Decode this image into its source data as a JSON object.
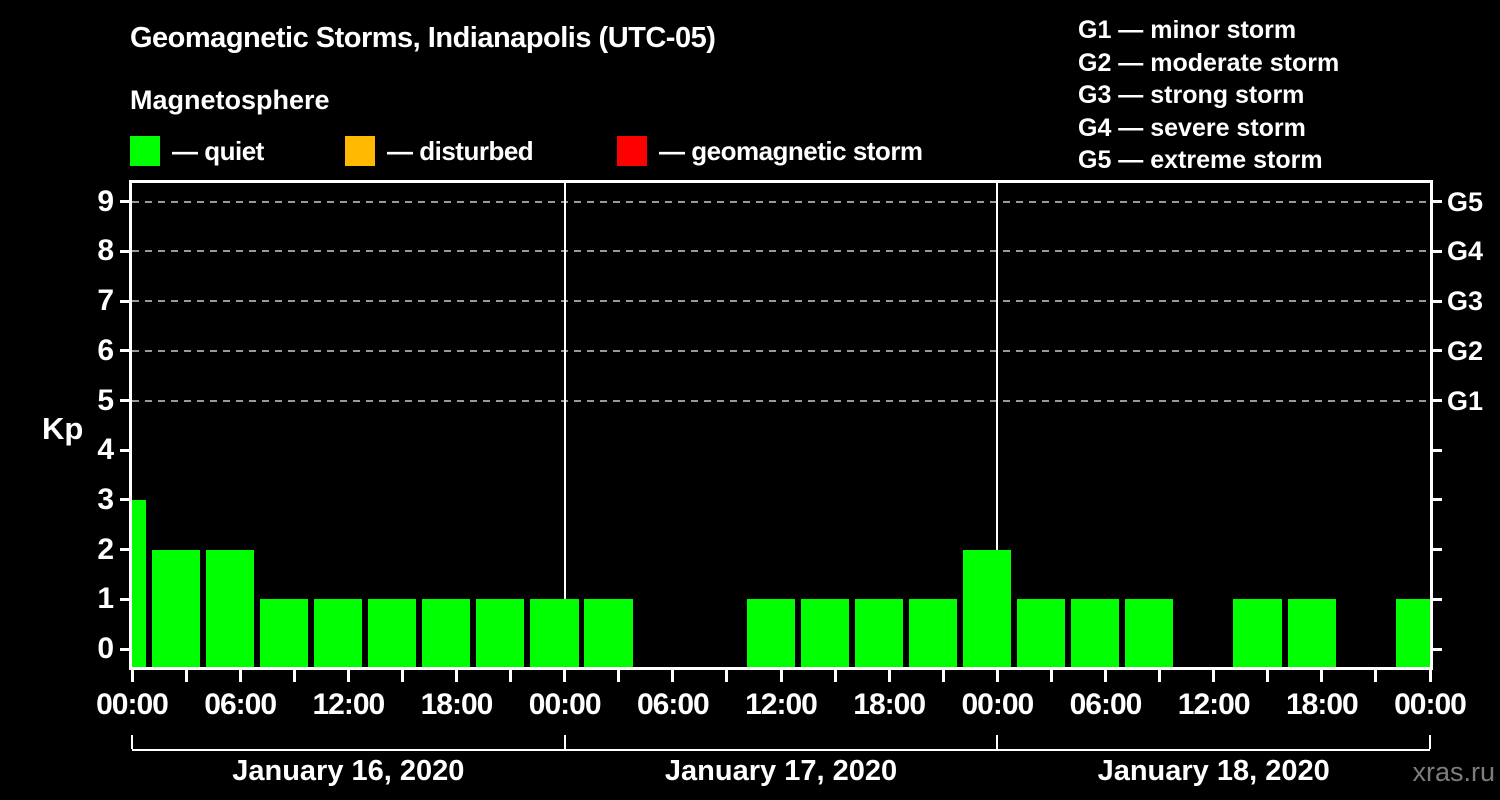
{
  "header": {
    "title": "Geomagnetic Storms, Indianapolis (UTC-05)",
    "subtitle": "Magnetosphere",
    "kp_legend": [
      {
        "label": "— quiet",
        "status": "quiet",
        "color": "#00ff00"
      },
      {
        "label": "— disturbed",
        "status": "disturbed",
        "color": "#ffb900"
      },
      {
        "label": "— geomagnetic storm",
        "status": "storm",
        "color": "#ff0000"
      }
    ],
    "g_scale_legend": [
      "G1 — minor storm",
      "G2 — moderate storm",
      "G3 — strong storm",
      "G4 — severe storm",
      "G5 — extreme storm"
    ]
  },
  "watermark": "xras.ru",
  "chart_data": {
    "type": "bar",
    "title": "Geomagnetic Storms, Indianapolis (UTC-05)",
    "subtitle": "Magnetosphere",
    "ylabel": "Kp",
    "y_ticks": [
      "0",
      "1",
      "2",
      "3",
      "4",
      "5",
      "6",
      "7",
      "8",
      "9"
    ],
    "ylim": [
      0,
      9
    ],
    "x_hours_span": 72,
    "bar_interval_hours": 3,
    "series_name": "Kp index, 3-hour intervals",
    "points": [
      {
        "start_hour": -3,
        "kp": 3,
        "status": "quiet"
      },
      {
        "start_hour": 0,
        "kp": 2,
        "status": "quiet"
      },
      {
        "start_hour": 3,
        "kp": 2,
        "status": "quiet"
      },
      {
        "start_hour": 6,
        "kp": 1,
        "status": "quiet"
      },
      {
        "start_hour": 9,
        "kp": 1,
        "status": "quiet"
      },
      {
        "start_hour": 12,
        "kp": 1,
        "status": "quiet"
      },
      {
        "start_hour": 15,
        "kp": 1,
        "status": "quiet"
      },
      {
        "start_hour": 18,
        "kp": 1,
        "status": "quiet"
      },
      {
        "start_hour": 21,
        "kp": 1,
        "status": "quiet"
      },
      {
        "start_hour": 24,
        "kp": 1,
        "status": "quiet"
      },
      {
        "start_hour": 27,
        "kp": 0,
        "status": "quiet"
      },
      {
        "start_hour": 30,
        "kp": 0,
        "status": "quiet"
      },
      {
        "start_hour": 33,
        "kp": 1,
        "status": "quiet"
      },
      {
        "start_hour": 36,
        "kp": 1,
        "status": "quiet"
      },
      {
        "start_hour": 39,
        "kp": 1,
        "status": "quiet"
      },
      {
        "start_hour": 42,
        "kp": 1,
        "status": "quiet"
      },
      {
        "start_hour": 45,
        "kp": 2,
        "status": "quiet"
      },
      {
        "start_hour": 48,
        "kp": 1,
        "status": "quiet"
      },
      {
        "start_hour": 51,
        "kp": 1,
        "status": "quiet"
      },
      {
        "start_hour": 54,
        "kp": 1,
        "status": "quiet"
      },
      {
        "start_hour": 57,
        "kp": 0,
        "status": "quiet"
      },
      {
        "start_hour": 60,
        "kp": 1,
        "status": "quiet"
      },
      {
        "start_hour": 63,
        "kp": 1,
        "status": "quiet"
      },
      {
        "start_hour": 66,
        "kp": 0,
        "status": "quiet"
      },
      {
        "start_hour": 69,
        "kp": 1,
        "status": "quiet"
      }
    ],
    "status_colors": {
      "quiet": "#00ff00",
      "disturbed": "#ffb900",
      "storm": "#ff0000"
    },
    "x_tick_labels": [
      {
        "hour": 0,
        "label": "00:00"
      },
      {
        "hour": 6,
        "label": "06:00"
      },
      {
        "hour": 12,
        "label": "12:00"
      },
      {
        "hour": 18,
        "label": "18:00"
      },
      {
        "hour": 24,
        "label": "00:00"
      },
      {
        "hour": 30,
        "label": "06:00"
      },
      {
        "hour": 36,
        "label": "12:00"
      },
      {
        "hour": 42,
        "label": "18:00"
      },
      {
        "hour": 48,
        "label": "00:00"
      },
      {
        "hour": 54,
        "label": "06:00"
      },
      {
        "hour": 60,
        "label": "12:00"
      },
      {
        "hour": 66,
        "label": "18:00"
      },
      {
        "hour": 72,
        "label": "00:00"
      }
    ],
    "day_labels": [
      {
        "label": "January 16, 2020",
        "start_hour": 0,
        "end_hour": 24
      },
      {
        "label": "January 17, 2020",
        "start_hour": 24,
        "end_hour": 48
      },
      {
        "label": "January 18, 2020",
        "start_hour": 48,
        "end_hour": 72
      }
    ],
    "day_boundaries_hours": [
      24,
      48
    ],
    "g_levels": [
      {
        "label": "G1",
        "kp": 5
      },
      {
        "label": "G2",
        "kp": 6
      },
      {
        "label": "G3",
        "kp": 7
      },
      {
        "label": "G4",
        "kp": 8
      },
      {
        "label": "G5",
        "kp": 9
      }
    ],
    "grid": {
      "dashed_levels_kp": [
        5,
        6,
        7,
        8,
        9
      ],
      "color": "#999999"
    },
    "legend_position": "top-left",
    "background_color": "#000000",
    "axis_color": "#ffffff"
  }
}
